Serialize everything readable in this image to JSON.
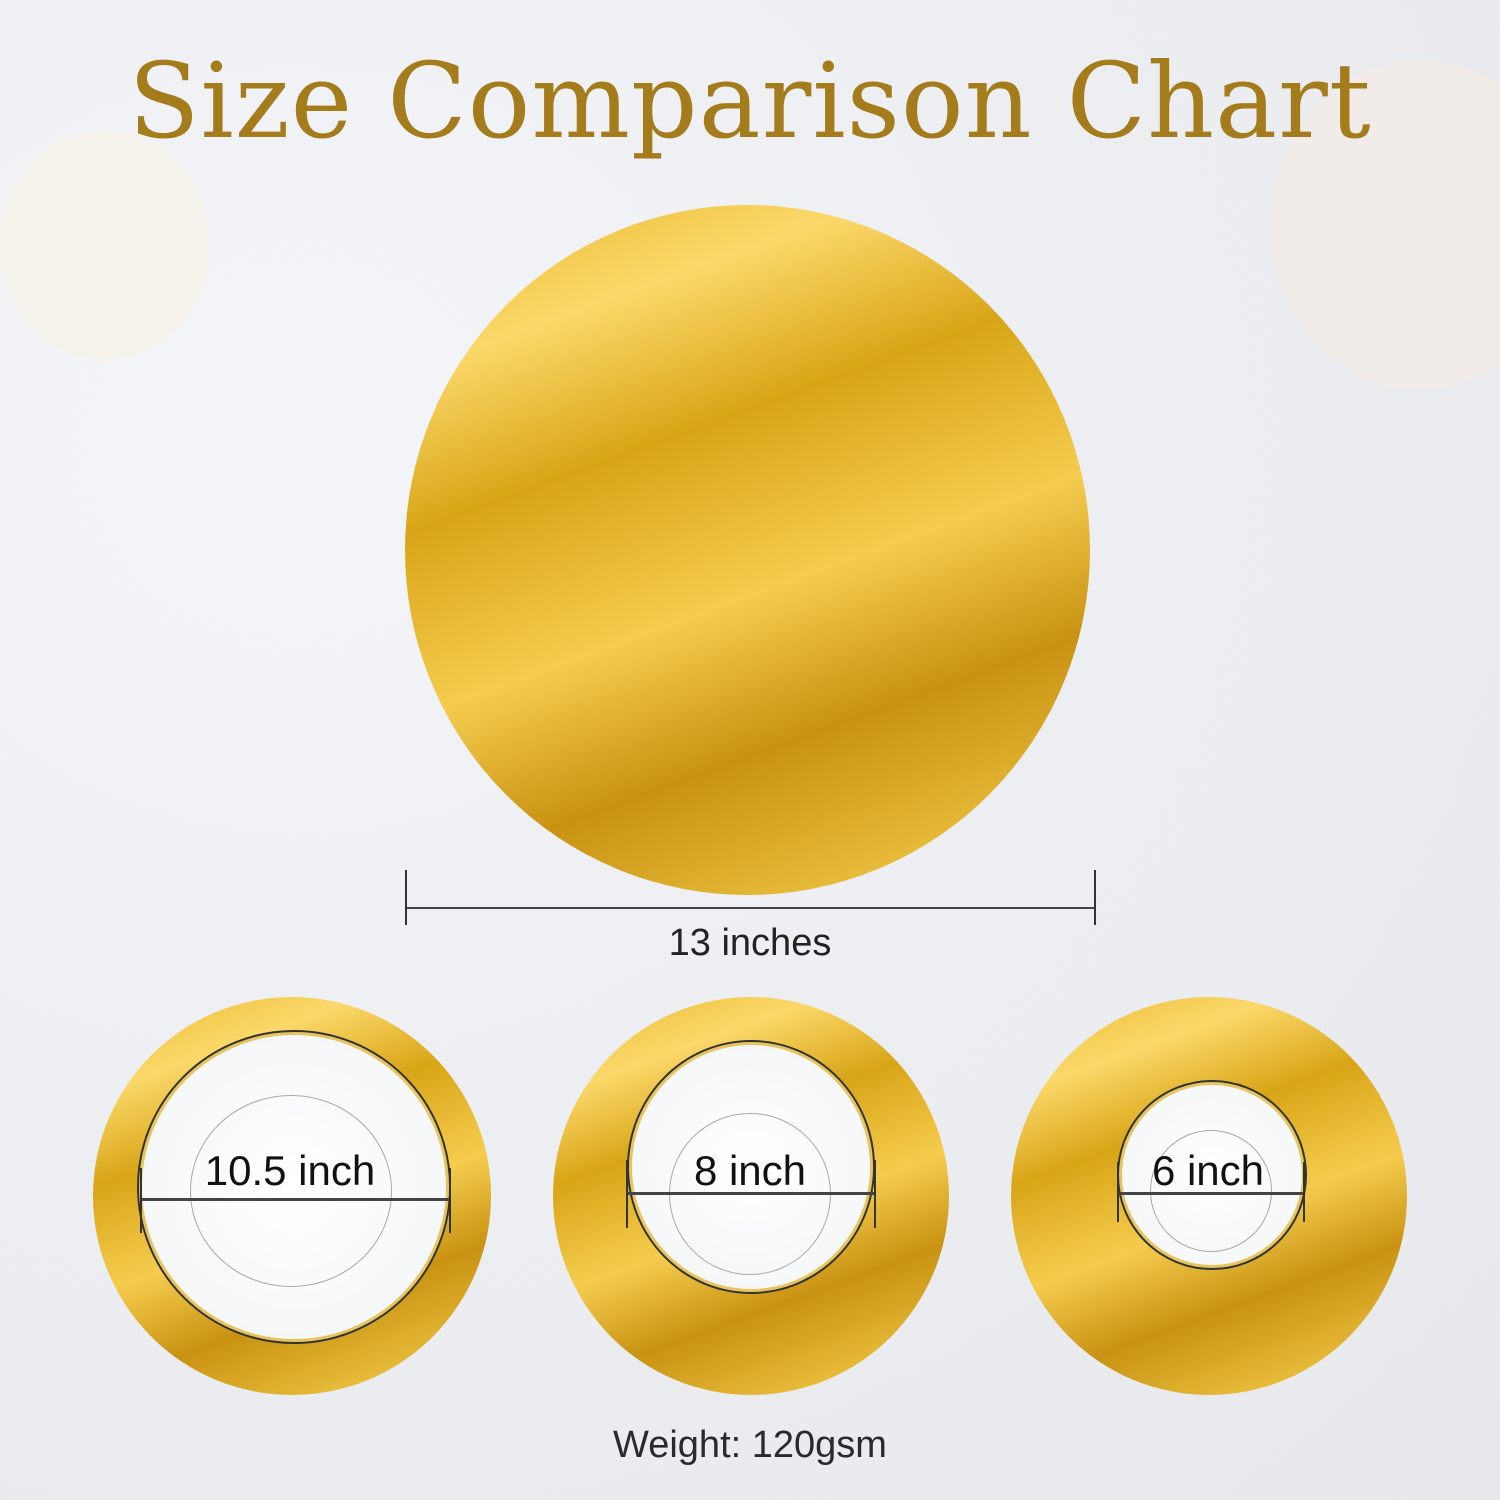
{
  "title": "Size Comparison Chart",
  "colors": {
    "title": "#a47c1c",
    "gold": "#d9a517",
    "background": "#eceef2"
  },
  "large": {
    "label": "13 inches"
  },
  "small": [
    {
      "label": "10.5 inch"
    },
    {
      "label": "8 inch"
    },
    {
      "label": "6 inch"
    }
  ],
  "weight": "Weight: 120gsm"
}
